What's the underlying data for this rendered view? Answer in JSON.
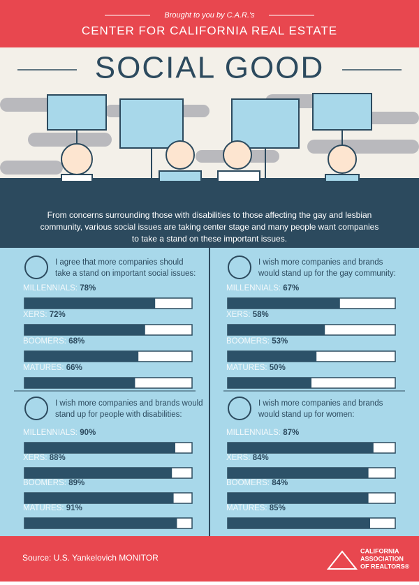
{
  "header": {
    "tagline": "Brought to you by C.A.R.'s",
    "org": "CENTER FOR CALIFORNIA REAL ESTATE"
  },
  "title": "SOCIAL GOOD",
  "intro": [
    "From concerns surrounding those with disabilities to those affecting the gay and lesbian",
    "community, various social issues are taking center stage and many people want companies",
    "to take a stand on these important issues."
  ],
  "xlim": [
    0,
    100
  ],
  "panels": [
    {
      "statement": [
        "I agree that more companies should",
        "take a stand on important social issues:"
      ],
      "rows": [
        {
          "label": "MILLENNIALS:",
          "value": 78,
          "value_label": "78%"
        },
        {
          "label": "XERS:",
          "value": 72,
          "value_label": "72%"
        },
        {
          "label": "BOOMERS:",
          "value": 68,
          "value_label": "68%"
        },
        {
          "label": "MATURES:",
          "value": 66,
          "value_label": "66%"
        }
      ]
    },
    {
      "statement": [
        "I wish more companies and brands",
        "would stand up for the gay community:"
      ],
      "rows": [
        {
          "label": "MILLENNIALS:",
          "value": 67,
          "value_label": "67%"
        },
        {
          "label": "XERS:",
          "value": 58,
          "value_label": "58%"
        },
        {
          "label": "BOOMERS:",
          "value": 53,
          "value_label": "53%"
        },
        {
          "label": "MATURES:",
          "value": 50,
          "value_label": "50%"
        }
      ]
    },
    {
      "statement": [
        "I wish more companies and brands would",
        "stand up for people with disabilities:"
      ],
      "rows": [
        {
          "label": "MILLENNIALS:",
          "value": 90,
          "value_label": "90%"
        },
        {
          "label": "XERS:",
          "value": 88,
          "value_label": "88%"
        },
        {
          "label": "BOOMERS:",
          "value": 89,
          "value_label": "89%"
        },
        {
          "label": "MATURES:",
          "value": 91,
          "value_label": "91%"
        }
      ]
    },
    {
      "statement": [
        "I wish more companies and brands",
        "would stand up for women:"
      ],
      "rows": [
        {
          "label": "MILLENNIALS:",
          "value": 87,
          "value_label": "87%"
        },
        {
          "label": "XERS:",
          "value": 84,
          "value_label": "84%"
        },
        {
          "label": "BOOMERS:",
          "value": 84,
          "value_label": "84%"
        },
        {
          "label": "MATURES:",
          "value": 85,
          "value_label": "85%"
        }
      ]
    }
  ],
  "source": "Source: U.S. Yankelovich MONITOR",
  "logo": [
    "CALIFORNIA",
    "ASSOCIATION",
    "OF REALTORS®"
  ]
}
